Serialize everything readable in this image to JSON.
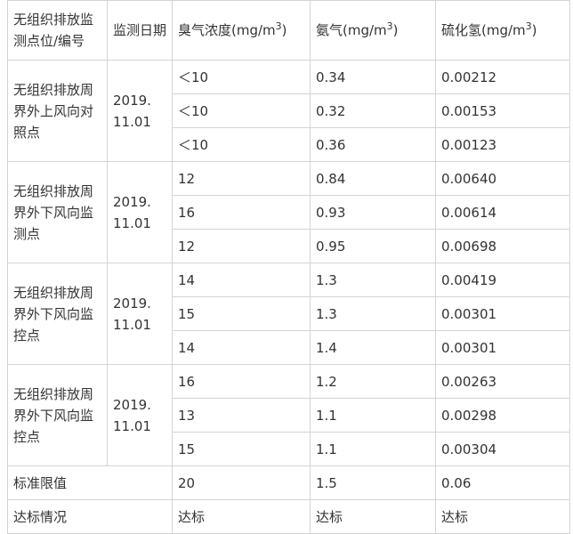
{
  "header": [
    {
      "text": "无组织排放监测点位/编号"
    },
    {
      "text": "监测日期"
    },
    {
      "text": "臭气浓度(mg/m",
      "sup": "3",
      "tail": ")"
    },
    {
      "text": "氨气(mg/m",
      "sup": "3",
      "tail": ")"
    },
    {
      "text": "硫化氢(mg/m",
      "sup": "3",
      "tail": ")"
    }
  ],
  "groups": [
    {
      "location": "无组织排放周界外上风向对照点",
      "date": "2019.11.01",
      "rows": [
        [
          "＜10",
          "0.34",
          "0.00212"
        ],
        [
          "＜10",
          "0.32",
          "0.00153"
        ],
        [
          "＜10",
          "0.36",
          "0.00123"
        ]
      ]
    },
    {
      "location": "无组织排放周界外下风向监测点",
      "date": "2019.11.01",
      "rows": [
        [
          "12",
          "0.84",
          "0.00640"
        ],
        [
          "16",
          "0.93",
          "0.00614"
        ],
        [
          "12",
          "0.95",
          "0.00698"
        ]
      ]
    },
    {
      "location": "无组织排放周界外下风向监控点",
      "date": "2019.11.01",
      "rows": [
        [
          "14",
          "1.3",
          "0.00419"
        ],
        [
          "15",
          "1.3",
          "0.00301"
        ],
        [
          "14",
          "1.4",
          "0.00301"
        ]
      ]
    },
    {
      "location": "无组织排放周界外下风向监控点",
      "date": "2019.11.01",
      "rows": [
        [
          "16",
          "1.2",
          "0.00263"
        ],
        [
          "13",
          "1.1",
          "0.00298"
        ],
        [
          "15",
          "1.1",
          "0.00304"
        ]
      ]
    }
  ],
  "footer": [
    [
      "标准限值",
      "20",
      "1.5",
      "0.06"
    ],
    [
      "达标情况",
      "达标",
      "达标",
      "达标"
    ]
  ]
}
